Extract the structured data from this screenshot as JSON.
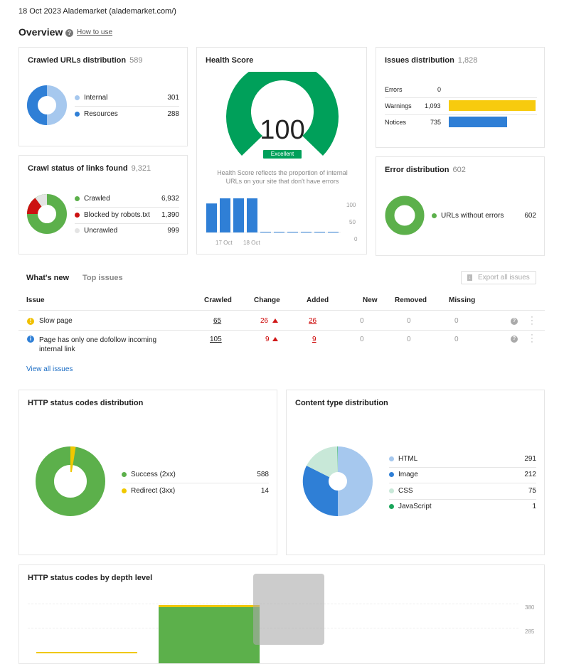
{
  "header": {
    "date_site": "18 Oct 2023 Alademarket (alademarket.com/)",
    "title": "Overview",
    "how_to_use": "How to use"
  },
  "crawled_urls": {
    "title": "Crawled URLs distribution",
    "count": "589",
    "items": [
      {
        "label": "Internal",
        "value": "301",
        "color": "#a6c8ee"
      },
      {
        "label": "Resources",
        "value": "288",
        "color": "#2f7fd6"
      }
    ]
  },
  "crawl_status": {
    "title": "Crawl status of links found",
    "count": "9,321",
    "items": [
      {
        "label": "Crawled",
        "value": "6,932",
        "color": "#5cb04b"
      },
      {
        "label": "Blocked by robots.txt",
        "value": "1,390",
        "color": "#cc1111"
      },
      {
        "label": "Uncrawled",
        "value": "999",
        "color": "#e4e4e4"
      }
    ]
  },
  "health": {
    "title": "Health Score",
    "score": "100",
    "badge": "Excellent",
    "description": "Health Score reflects the proportion of internal URLs on your site that don't have errors",
    "color": "#00a05a",
    "bars": [
      85,
      100,
      100,
      100,
      2,
      2,
      2,
      2,
      2,
      2
    ],
    "y_ticks": [
      "100",
      "50",
      "0"
    ],
    "x_labels": [
      "17 Oct",
      "18 Oct"
    ]
  },
  "issues_dist": {
    "title": "Issues distribution",
    "count": "1,828",
    "rows": [
      {
        "label": "Errors",
        "value": "0",
        "color": "#e0e0e0",
        "fraction": 0
      },
      {
        "label": "Warnings",
        "value": "1,093",
        "color": "#f7cb0e",
        "fraction": 1.0
      },
      {
        "label": "Notices",
        "value": "735",
        "color": "#2f7fd6",
        "fraction": 0.67
      }
    ]
  },
  "error_dist": {
    "title": "Error distribution",
    "count": "602",
    "legend": "URLs without errors",
    "value": "602",
    "color": "#5cb04b"
  },
  "tabs": {
    "whats_new": "What's new",
    "top_issues": "Top issues",
    "export": "Export all issues"
  },
  "issues_table": {
    "headers": {
      "issue": "Issue",
      "crawled": "Crawled",
      "change": "Change",
      "added": "Added",
      "new": "New",
      "removed": "Removed",
      "missing": "Missing"
    },
    "rows": [
      {
        "icon": "warning",
        "issue": "Slow page",
        "crawled": "65",
        "change": "26",
        "added": "26",
        "new": "0",
        "removed": "0",
        "missing": "0"
      },
      {
        "icon": "info",
        "issue": "Page has only one dofollow incoming",
        "issue2": "internal link",
        "crawled": "105",
        "change": "9",
        "added": "9",
        "new": "0",
        "removed": "0",
        "missing": "0"
      }
    ],
    "view_all": "View all issues"
  },
  "http_status": {
    "title": "HTTP status codes distribution",
    "items": [
      {
        "label": "Success (2xx)",
        "value": "588",
        "color": "#5cb04b"
      },
      {
        "label": "Redirect (3xx)",
        "value": "14",
        "color": "#f0c800"
      }
    ]
  },
  "content_type": {
    "title": "Content type distribution",
    "items": [
      {
        "label": "HTML",
        "value": "291",
        "color": "#a6c8ee"
      },
      {
        "label": "Image",
        "value": "212",
        "color": "#2f7fd6"
      },
      {
        "label": "CSS",
        "value": "75",
        "color": "#c8e8d8"
      },
      {
        "label": "JavaScript",
        "value": "1",
        "color": "#1aa55a"
      }
    ]
  },
  "depth": {
    "title": "HTTP status codes by depth level",
    "y_ticks": [
      "380",
      "285"
    ]
  }
}
